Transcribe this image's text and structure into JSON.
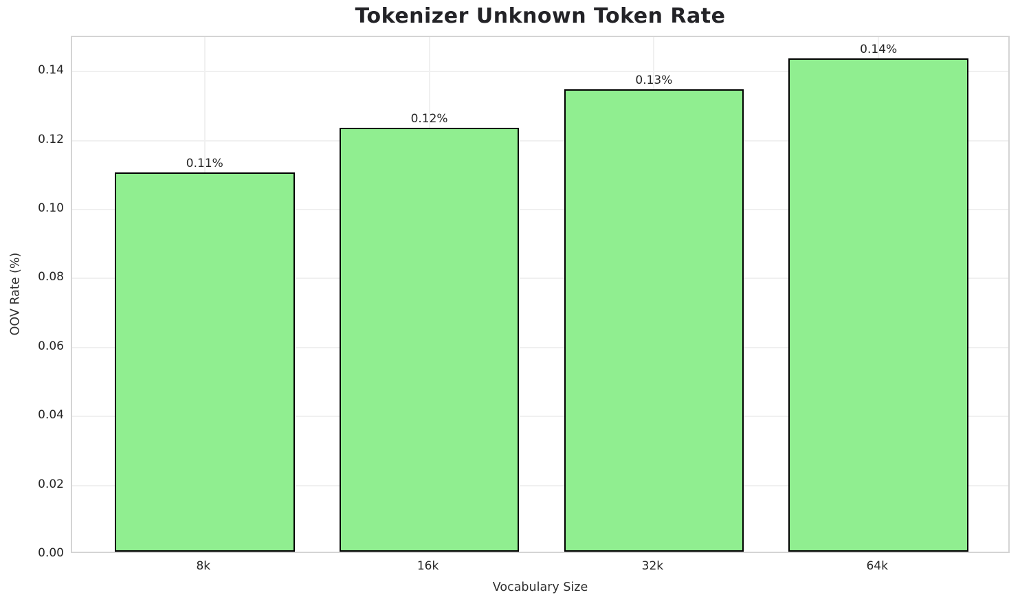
{
  "chart_data": {
    "type": "bar",
    "title": "Tokenizer Unknown Token Rate",
    "xlabel": "Vocabulary Size",
    "ylabel": "OOV Rate (%)",
    "categories": [
      "8k",
      "16k",
      "32k",
      "64k"
    ],
    "values": [
      0.11,
      0.123,
      0.134,
      0.143
    ],
    "bar_labels": [
      "0.11%",
      "0.12%",
      "0.13%",
      "0.14%"
    ],
    "ylim": [
      0,
      0.15
    ],
    "yticks": [
      0.0,
      0.02,
      0.04,
      0.06,
      0.08,
      0.1,
      0.12,
      0.14
    ],
    "ytick_labels": [
      "0.00",
      "0.02",
      "0.04",
      "0.06",
      "0.08",
      "0.10",
      "0.12",
      "0.14"
    ],
    "grid": true,
    "legend_position": "none",
    "bar_color": "#90EE90",
    "bar_edge_color": "#000000",
    "grid_color": "#f0f0f0",
    "spine_color": "#d4d4d4",
    "text_color": "#262626"
  }
}
